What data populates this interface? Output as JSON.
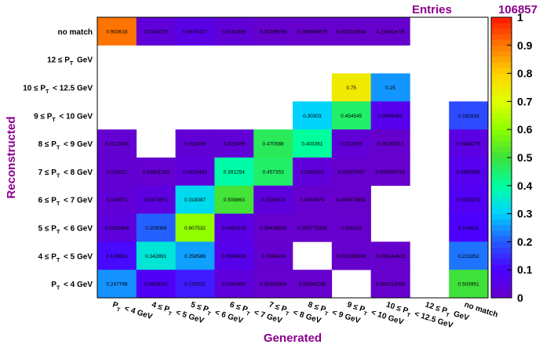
{
  "stats": {
    "label": "Entries",
    "value": "106857"
  },
  "chart_data": {
    "type": "heatmap",
    "xlabel": "Generated",
    "ylabel": "Reconstructed",
    "x_categories": [
      "P_T < 4 GeV",
      "4 ≤ P_T < 5 GeV",
      "5 ≤ P_T < 6 GeV",
      "6 ≤ P_T < 7 GeV",
      "7 ≤ P_T < 8 GeV",
      "8 ≤ P_T < 9 GeV",
      "9 ≤ P_T < 10 GeV",
      "10 ≤ P_T < 12.5 GeV",
      "12 ≤ P_T GeV",
      "no match"
    ],
    "y_categories": [
      "P_T < 4 GeV",
      "4 ≤ P_T < 5 GeV",
      "5 ≤ P_T < 6 GeV",
      "6 ≤ P_T < 7 GeV",
      "7 ≤ P_T < 8 GeV",
      "8 ≤ P_T < 9 GeV",
      "9 ≤ P_T < 10 GeV",
      "10 ≤ P_T < 12.5 GeV",
      "12 ≤ P_T GeV",
      "no match"
    ],
    "zlim": [
      0,
      1
    ],
    "z_ticks": [
      "0",
      "0.1",
      "0.2",
      "0.3",
      "0.4",
      "0.5",
      "0.6",
      "0.7",
      "0.8",
      "0.9",
      "1"
    ],
    "cells": [
      {
        "x": 0,
        "y": 9,
        "value": 0.903618,
        "label": "0.903618"
      },
      {
        "x": 1,
        "y": 9,
        "value": 0.0244726,
        "label": "0.0244726"
      },
      {
        "x": 2,
        "y": 9,
        "value": 0.0476477,
        "label": "0.0476477"
      },
      {
        "x": 3,
        "y": 9,
        "value": 0.0192485,
        "label": "0.0192485"
      },
      {
        "x": 4,
        "y": 9,
        "value": 0.00399789,
        "label": "0.00399789"
      },
      {
        "x": 5,
        "y": 9,
        "value": 0.000964979,
        "label": "0.000964979"
      },
      {
        "x": 6,
        "y": 9,
        "value": 0.000116034,
        "label": "0.000116034"
      },
      {
        "x": 7,
        "y": 9,
        "value": 4.21941e-05,
        "label": "4.21941e-05"
      },
      {
        "x": 6,
        "y": 7,
        "value": 0.75,
        "label": "0.75"
      },
      {
        "x": 7,
        "y": 7,
        "value": 0.25,
        "label": "0.25"
      },
      {
        "x": 5,
        "y": 6,
        "value": 0.30303,
        "label": "0.30303"
      },
      {
        "x": 6,
        "y": 6,
        "value": 0.454545,
        "label": "0.454545"
      },
      {
        "x": 7,
        "y": 6,
        "value": 0.0606061,
        "label": "0.0606061"
      },
      {
        "x": 9,
        "y": 6,
        "value": 0.181818,
        "label": "0.181818"
      },
      {
        "x": 0,
        "y": 5,
        "value": 0.0112045,
        "label": "0.0112045"
      },
      {
        "x": 2,
        "y": 5,
        "value": 0.022409,
        "label": "0.022409"
      },
      {
        "x": 3,
        "y": 5,
        "value": 0.022409,
        "label": "0.022409"
      },
      {
        "x": 4,
        "y": 5,
        "value": 0.470588,
        "label": "0.470588"
      },
      {
        "x": 5,
        "y": 5,
        "value": 0.403361,
        "label": "0.403361"
      },
      {
        "x": 6,
        "y": 5,
        "value": 0.022409,
        "label": "0.022409"
      },
      {
        "x": 7,
        "y": 5,
        "value": 0.00280112,
        "label": "0.00280112"
      },
      {
        "x": 9,
        "y": 5,
        "value": 0.0448179,
        "label": "0.0448179"
      },
      {
        "x": 0,
        "y": 4,
        "value": 0.014021,
        "label": "0.014021"
      },
      {
        "x": 1,
        "y": 4,
        "value": 0.00801202,
        "label": "0.00801202"
      },
      {
        "x": 2,
        "y": 4,
        "value": 0.0320481,
        "label": "0.0320481"
      },
      {
        "x": 3,
        "y": 4,
        "value": 0.391254,
        "label": "0.391254"
      },
      {
        "x": 4,
        "y": 4,
        "value": 0.457353,
        "label": "0.457353"
      },
      {
        "x": 5,
        "y": 4,
        "value": 0.0280421,
        "label": "0.0280421"
      },
      {
        "x": 6,
        "y": 4,
        "value": 0.00267067,
        "label": "0.00267067"
      },
      {
        "x": 7,
        "y": 4,
        "value": 0.000500751,
        "label": "0.000500751"
      },
      {
        "x": 9,
        "y": 4,
        "value": 0.0660992,
        "label": "0.0660992"
      },
      {
        "x": 0,
        "y": 3,
        "value": 0.018971,
        "label": "0.018971"
      },
      {
        "x": 1,
        "y": 3,
        "value": 0.0373671,
        "label": "0.0373671"
      },
      {
        "x": 2,
        "y": 3,
        "value": 0.318387,
        "label": "0.318387"
      },
      {
        "x": 3,
        "y": 3,
        "value": 0.508863,
        "label": "0.508863"
      },
      {
        "x": 4,
        "y": 3,
        "value": 0.0320973,
        "label": "0.0320973"
      },
      {
        "x": 5,
        "y": 3,
        "value": 0.0044074,
        "label": "0.0044074"
      },
      {
        "x": 6,
        "y": 3,
        "value": 0.000670691,
        "label": "0.000670691"
      },
      {
        "x": 9,
        "y": 3,
        "value": 0.0792373,
        "label": "0.0792373"
      },
      {
        "x": 0,
        "y": 2,
        "value": 0.0322868,
        "label": "0.0322868"
      },
      {
        "x": 1,
        "y": 2,
        "value": 0.205089,
        "label": "0.205089"
      },
      {
        "x": 2,
        "y": 2,
        "value": 0.607532,
        "label": "0.607532"
      },
      {
        "x": 3,
        "y": 2,
        "value": 0.0492228,
        "label": "0.0492228"
      },
      {
        "x": 4,
        "y": 2,
        "value": 0.00436835,
        "label": "0.00436835"
      },
      {
        "x": 5,
        "y": 2,
        "value": 0.000773336,
        "label": "0.000773336"
      },
      {
        "x": 6,
        "y": 2,
        "value": 0.000118,
        "label": "0.000118"
      },
      {
        "x": 9,
        "y": 2,
        "value": 0.100611,
        "label": "0.100611"
      },
      {
        "x": 0,
        "y": 1,
        "value": 0.109652,
        "label": "0.109652"
      },
      {
        "x": 1,
        "y": 1,
        "value": 0.342891,
        "label": "0.342891"
      },
      {
        "x": 2,
        "y": 1,
        "value": 0.258586,
        "label": "0.258586"
      },
      {
        "x": 3,
        "y": 1,
        "value": 0.0593436,
        "label": "0.0593436"
      },
      {
        "x": 4,
        "y": 1,
        "value": 0.0069419,
        "label": "0.0069419"
      },
      {
        "x": 6,
        "y": 1,
        "value": 0.000289246,
        "label": "0.000289246"
      },
      {
        "x": 7,
        "y": 1,
        "value": 0.000144623,
        "label": "0.000144623"
      },
      {
        "x": 9,
        "y": 1,
        "value": 0.221852,
        "label": "0.221852"
      },
      {
        "x": 0,
        "y": 0,
        "value": 0.247798,
        "label": "0.247798"
      },
      {
        "x": 1,
        "y": 0,
        "value": 0.0828061,
        "label": "0.0828061"
      },
      {
        "x": 2,
        "y": 0,
        "value": 0.130511,
        "label": "0.130511"
      },
      {
        "x": 3,
        "y": 0,
        "value": 0.0300487,
        "label": "0.0300487"
      },
      {
        "x": 4,
        "y": 0,
        "value": 0.00361904,
        "label": "0.00361904"
      },
      {
        "x": 5,
        "y": 0,
        "value": 0.00045236,
        "label": "0.00045236"
      },
      {
        "x": 7,
        "y": 0,
        "value": 0.000113096,
        "label": "0.000113096"
      },
      {
        "x": 9,
        "y": 0,
        "value": 0.503951,
        "label": "0.503951"
      }
    ]
  }
}
